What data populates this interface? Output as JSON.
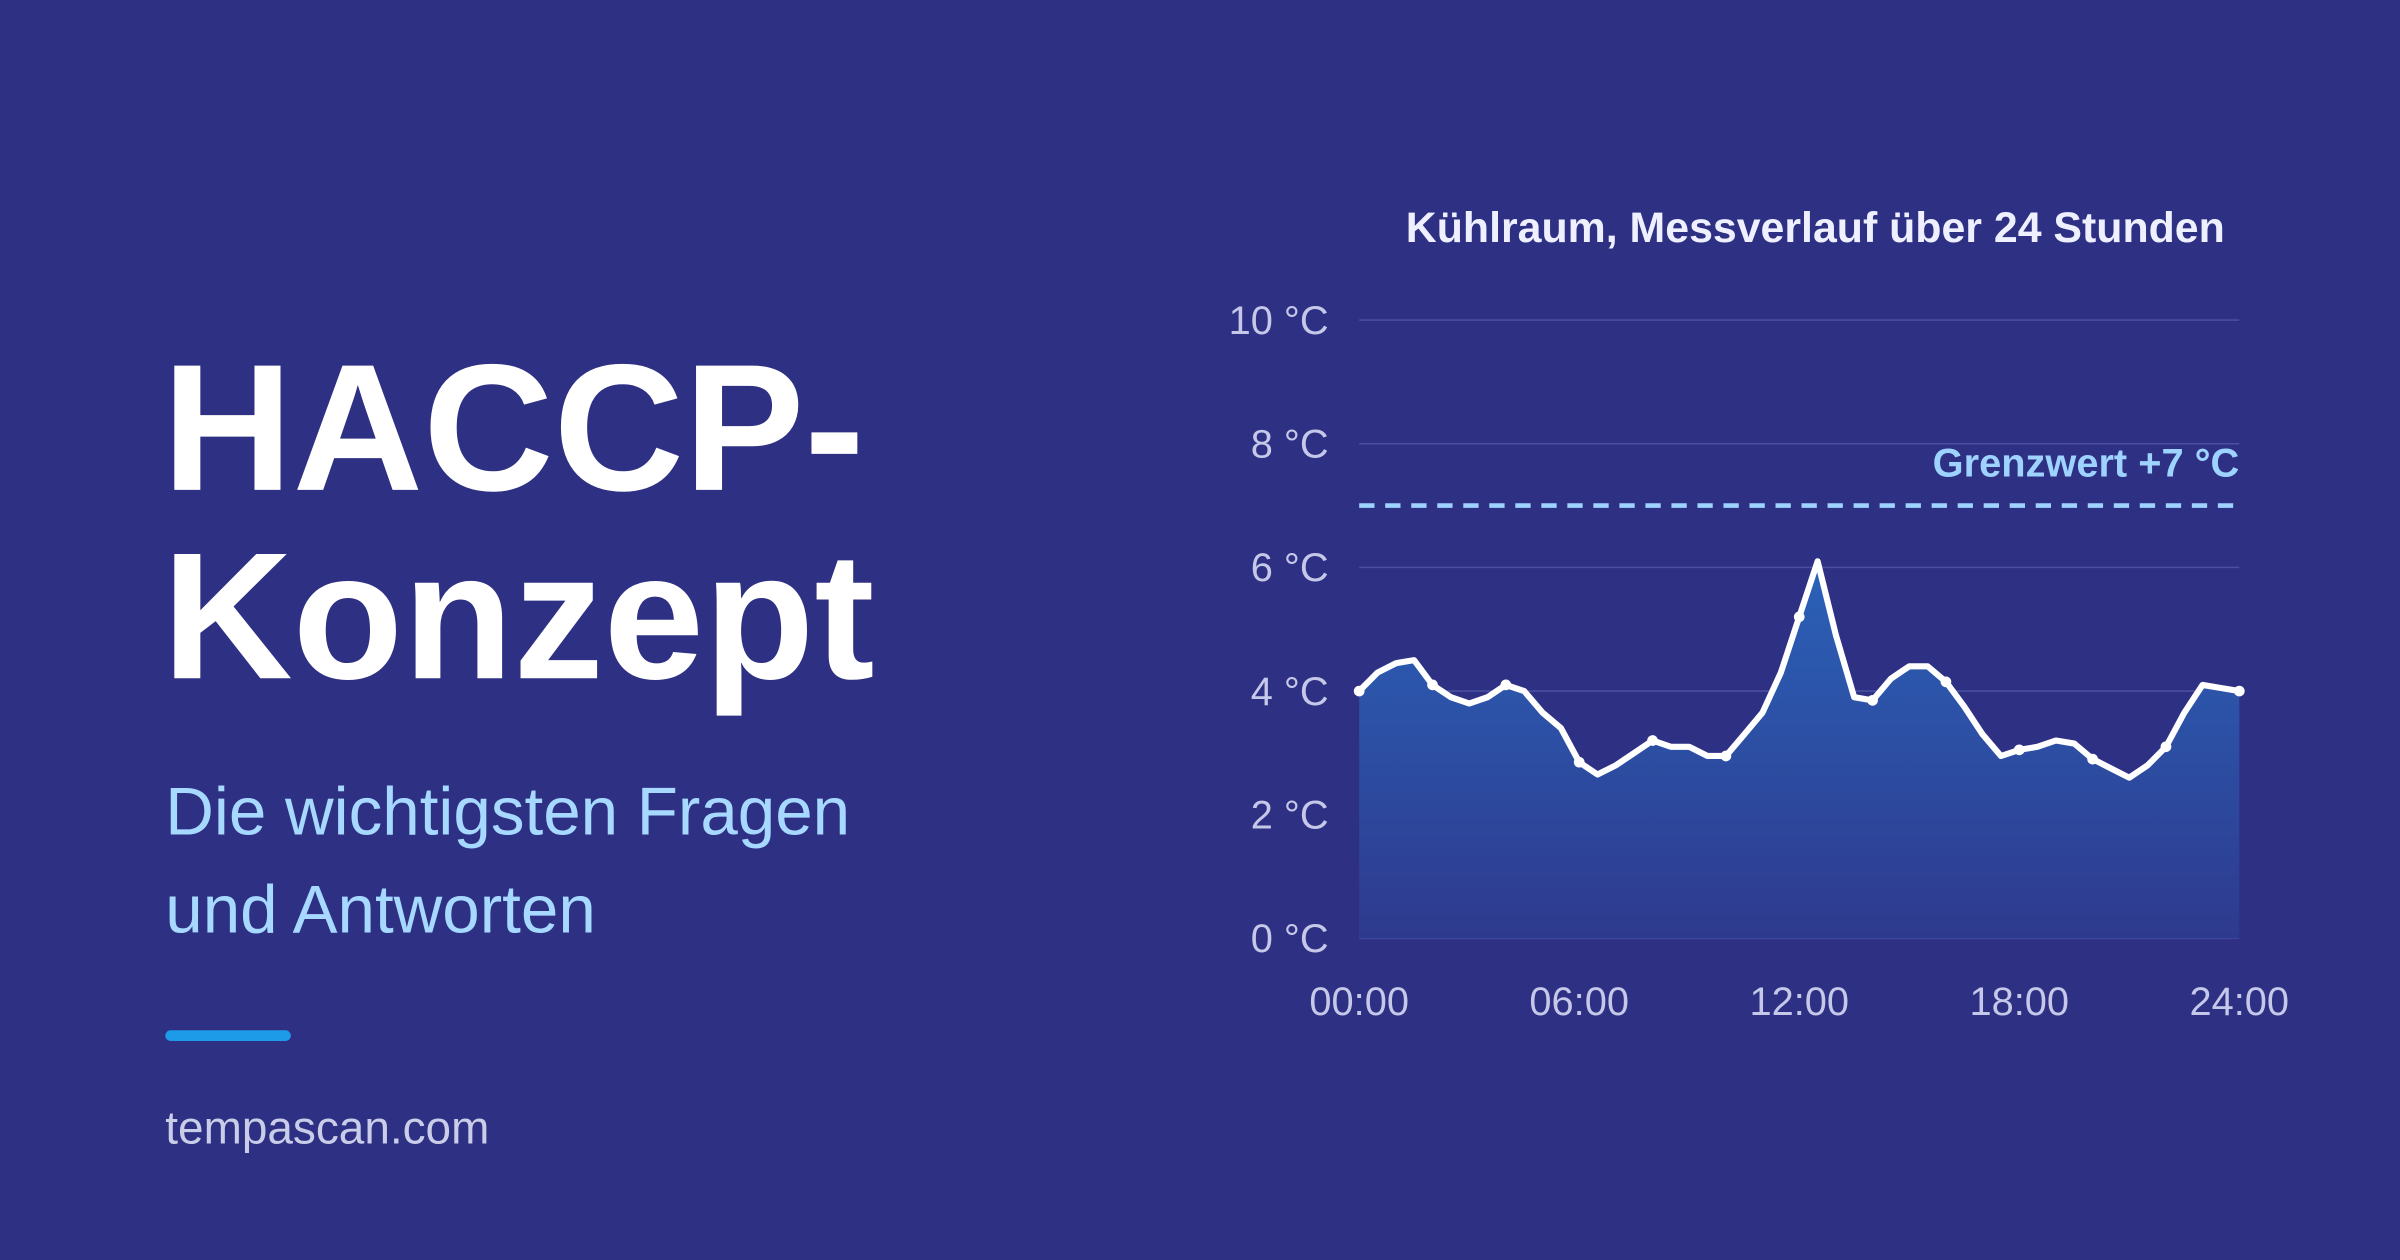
{
  "headline": [
    "HACCP-",
    "Konzept"
  ],
  "subline": [
    "Die wichtigsten Fragen",
    "und Antworten"
  ],
  "site": "tempascan.com",
  "chart_data": {
    "type": "area",
    "title": "Kühlraum, Messverlauf über 24 Stunden",
    "x": [
      0,
      0.5,
      1,
      1.5,
      2,
      2.5,
      3,
      3.5,
      4,
      4.5,
      5,
      5.5,
      6,
      6.5,
      7,
      7.5,
      8,
      8.5,
      9,
      9.5,
      10,
      10.5,
      11,
      11.5,
      12,
      12.5,
      13,
      13.5,
      14,
      14.5,
      15,
      15.5,
      16,
      16.5,
      17,
      17.5,
      18,
      18.5,
      19,
      19.5,
      20,
      20.5,
      21,
      21.5,
      22,
      22.5,
      23,
      23.5,
      24
    ],
    "values": [
      4.0,
      4.3,
      4.45,
      4.5,
      4.1,
      3.9,
      3.8,
      3.9,
      4.1,
      4.0,
      3.65,
      3.4,
      2.85,
      2.65,
      2.8,
      3.0,
      3.2,
      3.1,
      3.1,
      2.95,
      2.95,
      3.3,
      3.65,
      4.3,
      5.2,
      6.1,
      4.9,
      3.9,
      3.85,
      4.2,
      4.4,
      4.4,
      4.15,
      3.75,
      3.3,
      2.95,
      3.05,
      3.1,
      3.2,
      3.15,
      2.9,
      2.75,
      2.6,
      2.8,
      3.1,
      3.65,
      4.1,
      4.05,
      4.0
    ],
    "color": "#ffffff",
    "xlim": [
      0,
      24
    ],
    "xticks": [
      {
        "value": 0,
        "label": "00:00"
      },
      {
        "value": 6,
        "label": "06:00"
      },
      {
        "value": 12,
        "label": "12:00"
      },
      {
        "value": 18,
        "label": "18:00"
      },
      {
        "value": 24,
        "label": "24:00"
      }
    ],
    "ylim": [
      0,
      10
    ],
    "yticks": [
      {
        "value": 0,
        "label": "0 °C"
      },
      {
        "value": 2,
        "label": "2 °C"
      },
      {
        "value": 4,
        "label": "4 °C"
      },
      {
        "value": 6,
        "label": "6 °C"
      },
      {
        "value": 8,
        "label": "8 °C"
      },
      {
        "value": 10,
        "label": "10 °C"
      }
    ],
    "grid": true,
    "threshold": {
      "value": 7,
      "label": "Grenzwert +7 °C",
      "color": "#9fd3ff"
    }
  }
}
